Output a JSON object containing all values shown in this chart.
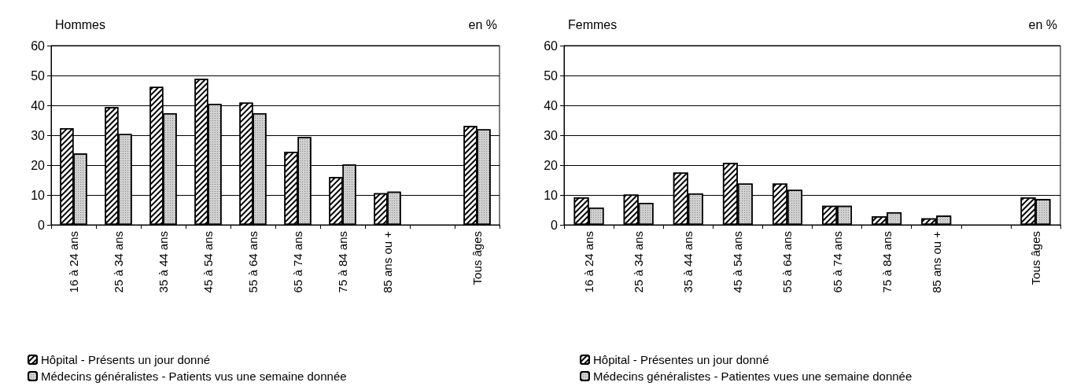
{
  "chart_data": [
    {
      "type": "bar",
      "title": "Hommes",
      "ylabel": "en %",
      "categories": [
        "16 à 24 ans",
        "25 à 34 ans",
        "35 à 44 ans",
        "45 à 54 ans",
        "55 à 64 ans",
        "65 à 74 ans",
        "75 à 84 ans",
        "85 ans ou +",
        null,
        "Tous âges"
      ],
      "series": [
        {
          "name": "Hôpital - Présents un jour donné",
          "color": "#ffffff",
          "values": [
            32.4,
            39.4,
            46.2,
            48.9,
            40.9,
            24.5,
            16.0,
            10.6,
            null,
            33.1
          ]
        },
        {
          "name": "Médecins généralistes - Patients vus une semaine donnée",
          "color": "#d0d0d0",
          "values": [
            23.9,
            30.4,
            37.4,
            40.5,
            37.4,
            29.4,
            20.2,
            11.1,
            null,
            32.0
          ]
        }
      ],
      "ylim": [
        0,
        60
      ],
      "yticks": [
        0,
        10,
        20,
        30,
        40,
        50,
        60
      ],
      "grid": "y",
      "legend": "bottom left"
    },
    {
      "type": "bar",
      "title": "Femmes",
      "ylabel": "en %",
      "categories": [
        "16 à 24 ans",
        "25 à 34 ans",
        "35 à 44 ans",
        "45 à 54 ans",
        "55 à 64 ans",
        "65 à 74 ans",
        "75 à 84 ans",
        "85 ans ou +",
        null,
        "Tous âges"
      ],
      "series": [
        {
          "name": "Hôpital - Présentes un jour donné",
          "color": "#ffffff",
          "values": [
            9.2,
            10.1,
            17.5,
            20.7,
            13.8,
            6.4,
            2.8,
            2.2,
            null,
            9.2
          ]
        },
        {
          "name": "Médecins généralistes - Patientes vues une semaine donnée",
          "color": "#d0d0d0",
          "values": [
            5.8,
            7.4,
            10.5,
            13.8,
            11.7,
            6.4,
            4.2,
            3.1,
            null,
            8.6
          ]
        }
      ],
      "ylim": [
        0,
        60
      ],
      "yticks": [
        0,
        10,
        20,
        30,
        40,
        50,
        60
      ],
      "grid": "y",
      "legend": "bottom left"
    }
  ]
}
